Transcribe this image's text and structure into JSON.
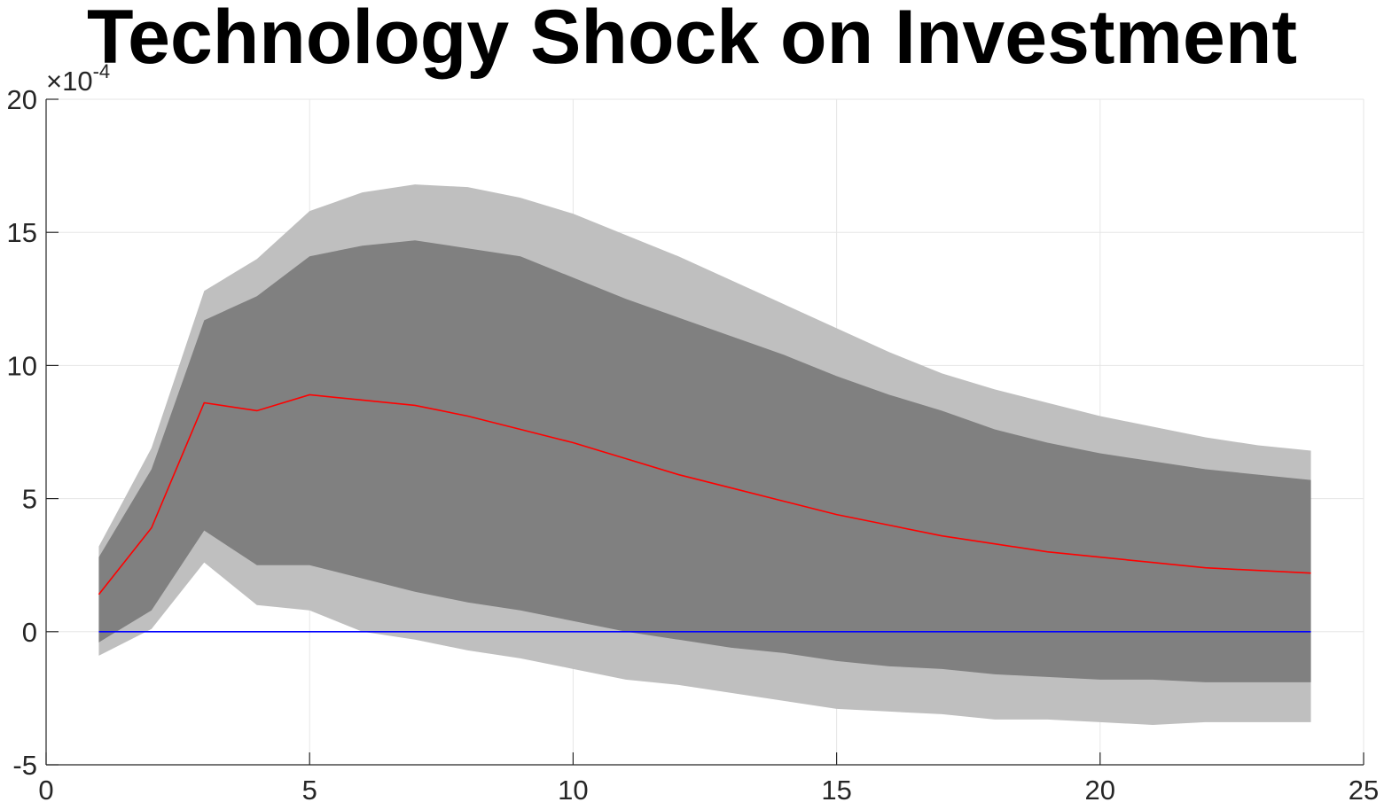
{
  "chart_data": {
    "type": "area",
    "title": "Technology Shock on Investment",
    "xlabel": "",
    "ylabel": "",
    "y_multiplier_label": {
      "base": "10",
      "exponent": "-4"
    },
    "xlim": [
      0,
      25
    ],
    "ylim": [
      -5,
      20
    ],
    "x_ticks": [
      "0",
      "5",
      "10",
      "15",
      "20",
      "25"
    ],
    "y_ticks": [
      "-5",
      "0",
      "5",
      "10",
      "15",
      "20"
    ],
    "grid": true,
    "legend": "none",
    "colors": {
      "outer_band": "#bfbfbf",
      "inner_band": "#808080",
      "median": "#ff0000",
      "zero_line": "#0000ff",
      "grid": "#e6e6e6",
      "axis": "#262626"
    },
    "x": [
      1,
      2,
      3,
      4,
      5,
      6,
      7,
      8,
      9,
      10,
      11,
      12,
      13,
      14,
      15,
      16,
      17,
      18,
      19,
      20,
      21,
      22,
      23,
      24
    ],
    "series": [
      {
        "role": "outer_upper",
        "values": [
          3.2,
          6.9,
          12.8,
          14.0,
          15.8,
          16.5,
          16.8,
          16.7,
          16.3,
          15.7,
          14.9,
          14.1,
          13.2,
          12.3,
          11.4,
          10.5,
          9.7,
          9.1,
          8.6,
          8.1,
          7.7,
          7.3,
          7.0,
          6.8
        ]
      },
      {
        "role": "inner_upper",
        "values": [
          2.8,
          6.1,
          11.7,
          12.6,
          14.1,
          14.5,
          14.7,
          14.4,
          14.1,
          13.3,
          12.5,
          11.8,
          11.1,
          10.4,
          9.6,
          8.9,
          8.3,
          7.6,
          7.1,
          6.7,
          6.4,
          6.1,
          5.9,
          5.7
        ]
      },
      {
        "role": "median",
        "values": [
          1.4,
          3.9,
          8.6,
          8.3,
          8.9,
          8.7,
          8.5,
          8.1,
          7.6,
          7.1,
          6.5,
          5.9,
          5.4,
          4.9,
          4.4,
          4.0,
          3.6,
          3.3,
          3.0,
          2.8,
          2.6,
          2.4,
          2.3,
          2.2
        ]
      },
      {
        "role": "inner_lower",
        "values": [
          -0.4,
          0.8,
          3.8,
          2.5,
          2.5,
          2.0,
          1.5,
          1.1,
          0.8,
          0.4,
          0.0,
          -0.3,
          -0.6,
          -0.8,
          -1.1,
          -1.3,
          -1.4,
          -1.6,
          -1.7,
          -1.8,
          -1.8,
          -1.9,
          -1.9,
          -1.9
        ]
      },
      {
        "role": "outer_lower",
        "values": [
          -0.9,
          0.1,
          2.6,
          1.0,
          0.8,
          0.0,
          -0.3,
          -0.7,
          -1.0,
          -1.4,
          -1.8,
          -2.0,
          -2.3,
          -2.6,
          -2.9,
          -3.0,
          -3.1,
          -3.3,
          -3.3,
          -3.4,
          -3.5,
          -3.4,
          -3.4,
          -3.4
        ]
      },
      {
        "role": "zero_line",
        "values": [
          0,
          0,
          0,
          0,
          0,
          0,
          0,
          0,
          0,
          0,
          0,
          0,
          0,
          0,
          0,
          0,
          0,
          0,
          0,
          0,
          0,
          0,
          0,
          0
        ]
      }
    ]
  }
}
